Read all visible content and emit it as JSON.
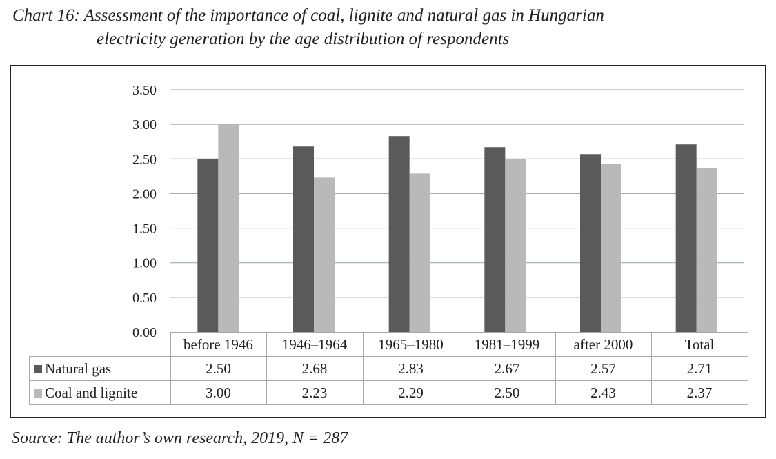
{
  "title_line1": "Chart 16: Assessment of the importance of coal, lignite and natural gas in Hungarian",
  "title_line2": "electricity generation by the age distribution of respondents",
  "source": "Source: The author’s own research, 2019, N = 287",
  "colors": {
    "natural_gas": "#5a5a5a",
    "coal_and_lignite": "#b9b9b9",
    "grid": "#9aa0a0"
  },
  "chart_data": {
    "type": "bar",
    "title": "Chart 16: Assessment of the importance of coal, lignite and natural gas in Hungarian electricity generation by the age distribution of respondents",
    "categories": [
      "before 1946",
      "1946–1964",
      "1965–1980",
      "1981–1999",
      "after 2000",
      "Total"
    ],
    "series": [
      {
        "name": "Natural gas",
        "values": [
          2.5,
          2.68,
          2.83,
          2.67,
          2.57,
          2.71
        ],
        "labels": [
          "2.50",
          "2.68",
          "2.83",
          "2.67",
          "2.57",
          "2.71"
        ]
      },
      {
        "name": "Coal and lignite",
        "values": [
          3.0,
          2.23,
          2.29,
          2.5,
          2.43,
          2.37
        ],
        "labels": [
          "3.00",
          "2.23",
          "2.29",
          "2.50",
          "2.43",
          "2.37"
        ]
      }
    ],
    "yticks": [
      "0.00",
      "0.50",
      "1.00",
      "1.50",
      "2.00",
      "2.50",
      "3.00",
      "3.50"
    ],
    "ylim": [
      0,
      3.5
    ],
    "xlabel": "",
    "ylabel": "",
    "grid": true,
    "legend": "data-table-bottom"
  }
}
